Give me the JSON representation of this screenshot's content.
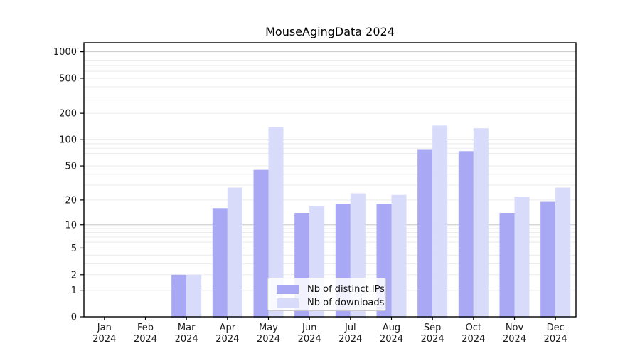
{
  "title": "MouseAgingData 2024",
  "chart_data": {
    "type": "bar",
    "scale": "log1p",
    "title": "MouseAgingData 2024",
    "xlabel": "",
    "ylabel": "",
    "year": "2024",
    "categories": [
      "Jan",
      "Feb",
      "Mar",
      "Apr",
      "May",
      "Jun",
      "Jul",
      "Aug",
      "Sep",
      "Oct",
      "Nov",
      "Dec"
    ],
    "series": [
      {
        "name": "Nb of distinct IPs",
        "color": "#a8a8f4",
        "values": [
          0,
          0,
          2,
          16,
          45,
          14,
          18,
          18,
          78,
          74,
          14,
          19
        ]
      },
      {
        "name": "Nb of downloads",
        "color": "#d8dbf9",
        "values": [
          0,
          0,
          2,
          28,
          140,
          17,
          24,
          23,
          145,
          135,
          22,
          28
        ]
      }
    ],
    "y_ticks": [
      0,
      1,
      2,
      5,
      10,
      20,
      50,
      100,
      200,
      500,
      1000
    ],
    "ylim": [
      0,
      1264
    ],
    "grid": true,
    "legend_position": "lower center"
  },
  "colors": {
    "axis": "#000000",
    "tick_label": "#1a1a1a",
    "grid_major": "#c6c6c6",
    "grid_minor": "#e9e9e9",
    "background": "#ffffff",
    "legend_border": "#c9c9c9"
  }
}
